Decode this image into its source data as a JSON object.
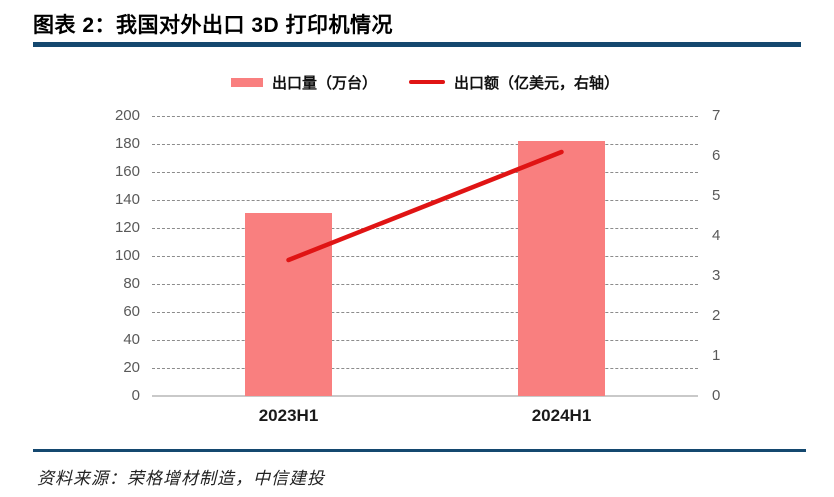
{
  "header": {
    "title": "图表 2：我国对外出口 3D 打印机情况"
  },
  "footer": {
    "source": "资料来源：荣格增材制造，中信建投"
  },
  "colors": {
    "rule_navy": "#14486f",
    "bar_pink": "#f97f7f",
    "line_red": "#e01414",
    "axis_text_gray": "#595959",
    "gridline_gray": "#8c8c8c",
    "baseline_gray": "#c9c9c9",
    "xlabel_black": "#1a1a1a"
  },
  "chart_data": {
    "type": "bar",
    "subtype": "combo-bar-line-dual-axis",
    "categories": [
      "2023H1",
      "2024H1"
    ],
    "series": [
      {
        "name": "出口量（万台）",
        "type": "bar",
        "axis": "left",
        "color": "#f97f7f",
        "values": [
          131,
          182
        ]
      },
      {
        "name": "出口额（亿美元，右轴）",
        "type": "line",
        "axis": "right",
        "color": "#e01414",
        "values": [
          3.4,
          6.1
        ]
      }
    ],
    "left_axis": {
      "min": 0,
      "max": 200,
      "step": 20
    },
    "right_axis": {
      "min": 0,
      "max": 7,
      "step": 1
    },
    "grid": "horizontal-dashed",
    "legend_position": "top-center",
    "title": "图表 2：我国对外出口 3D 打印机情况"
  }
}
